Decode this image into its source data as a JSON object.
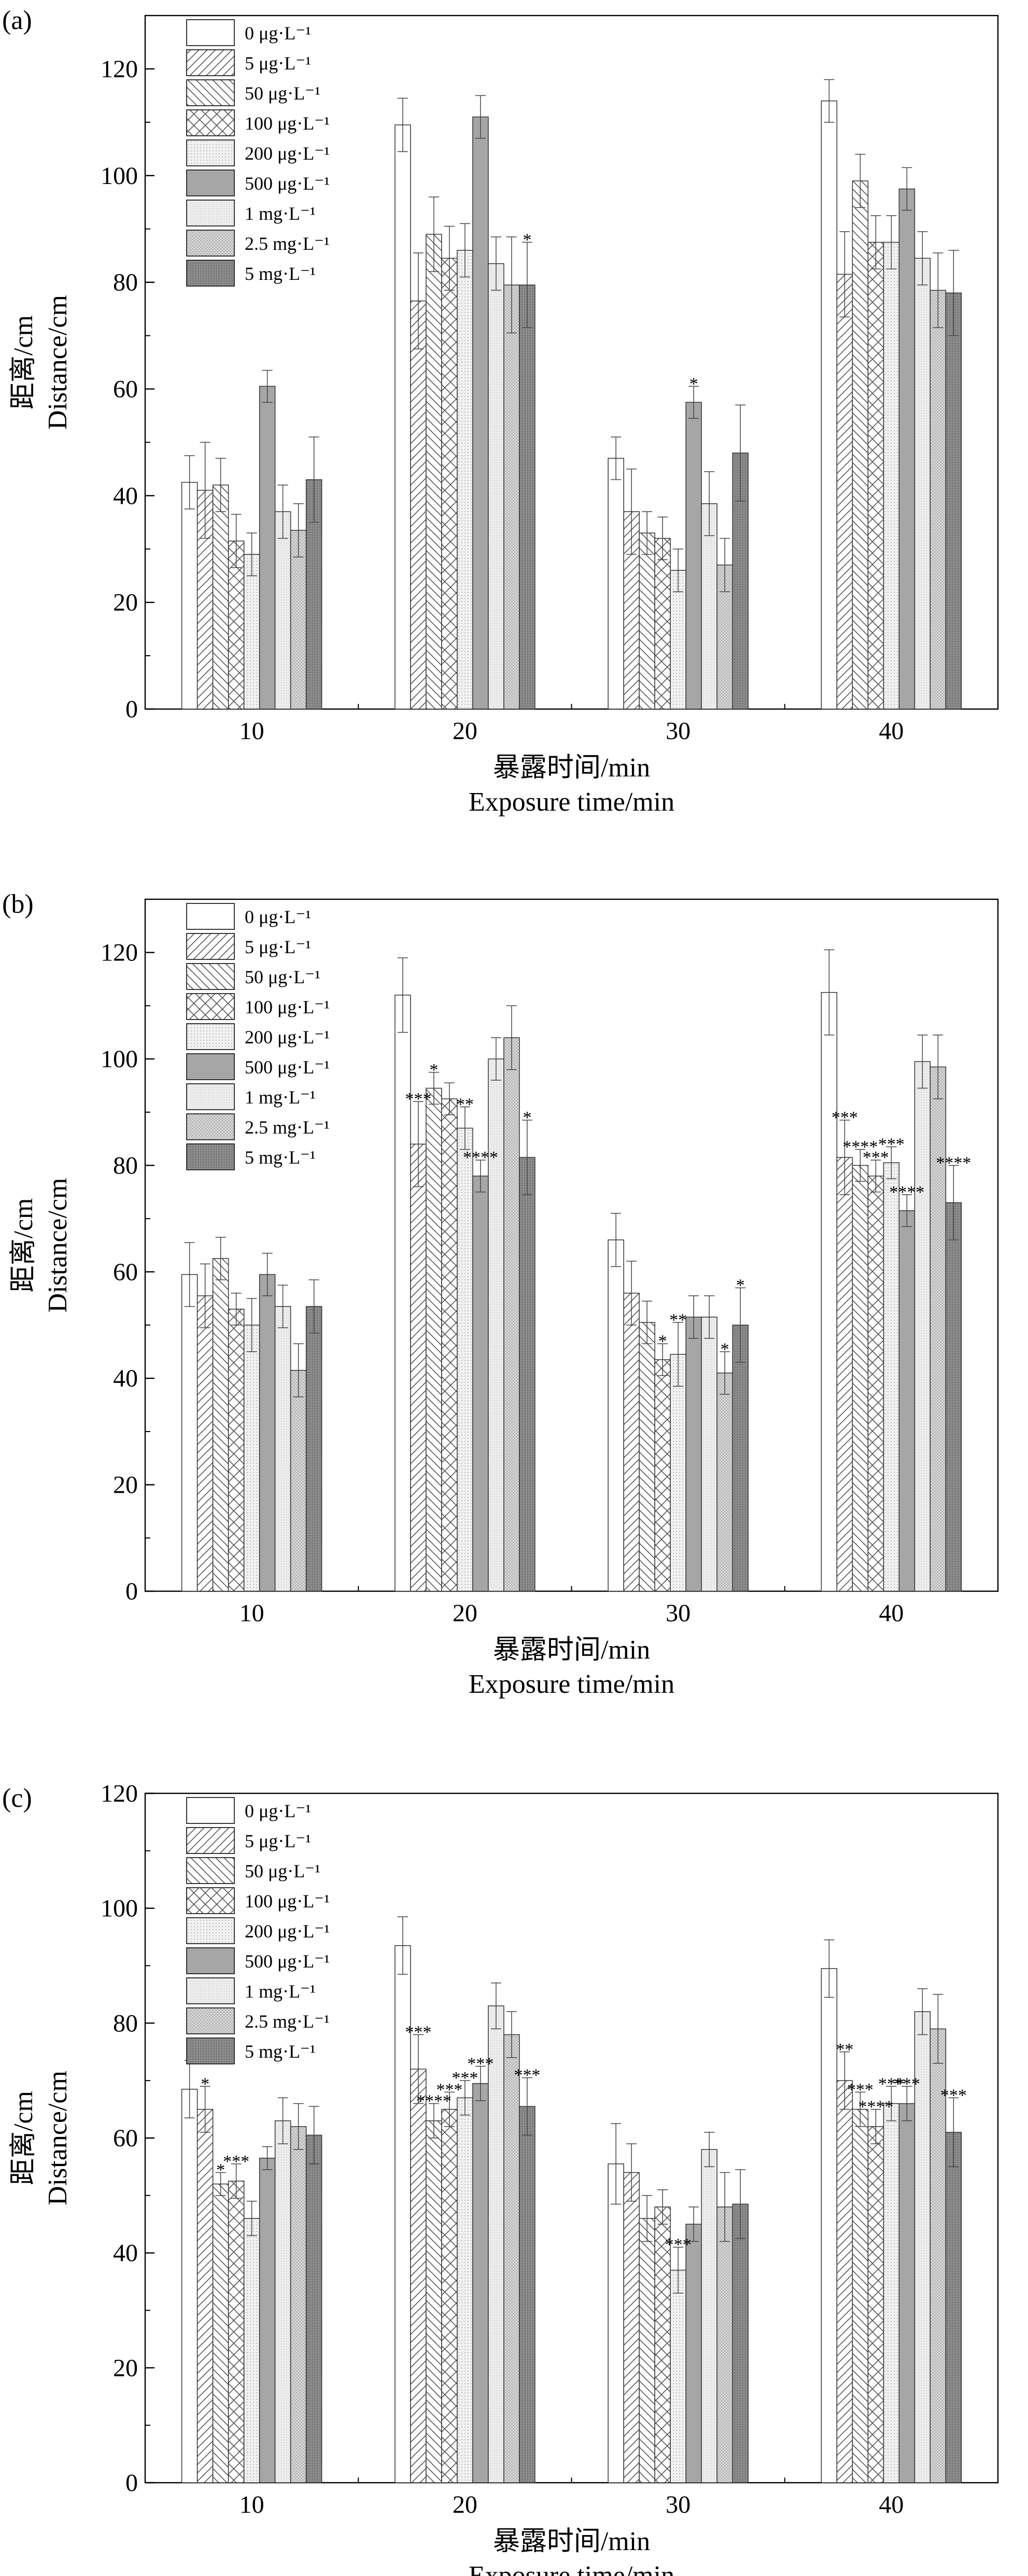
{
  "chart_data": [
    {
      "type": "bar",
      "panel_label": "(a)",
      "categories": [
        "10",
        "20",
        "30",
        "40"
      ],
      "xlabel_cn": "暴露时间/min",
      "xlabel_en": "Exposure time/min",
      "ylabel_cn": "距离/cm",
      "ylabel_en": "Distance/cm",
      "ylim": [
        0,
        130
      ],
      "yticks": [
        0,
        20,
        40,
        60,
        80,
        100,
        120
      ],
      "legend_position": "top-left",
      "series": [
        {
          "name": "0 μg·L⁻¹",
          "values": [
            42.5,
            109.5,
            47,
            114
          ],
          "errors": [
            5,
            5,
            4,
            4
          ]
        },
        {
          "name": "5 μg·L⁻¹",
          "values": [
            41,
            76.5,
            37,
            81.5
          ],
          "errors": [
            9,
            9,
            8,
            8
          ]
        },
        {
          "name": "50 μg·L⁻¹",
          "values": [
            42,
            89,
            33,
            99
          ],
          "errors": [
            5,
            7,
            4,
            5
          ]
        },
        {
          "name": "100 μg·L⁻¹",
          "values": [
            31.5,
            84.5,
            32,
            87.5
          ],
          "errors": [
            5,
            6,
            4,
            5
          ]
        },
        {
          "name": "200 μg·L⁻¹",
          "values": [
            29,
            86,
            26,
            87.5
          ],
          "errors": [
            4,
            5,
            4,
            5
          ]
        },
        {
          "name": "500 μg·L⁻¹",
          "values": [
            60.5,
            111,
            57.5,
            97.5
          ],
          "errors": [
            3,
            4,
            3,
            4
          ]
        },
        {
          "name": "1 mg·L⁻¹",
          "values": [
            37,
            83.5,
            38.5,
            84.5
          ],
          "errors": [
            5,
            5,
            6,
            5
          ]
        },
        {
          "name": "2.5 mg·L⁻¹",
          "values": [
            33.5,
            79.5,
            27,
            78.5
          ],
          "errors": [
            5,
            9,
            5,
            7
          ]
        },
        {
          "name": "5 mg·L⁻¹",
          "values": [
            43,
            79.5,
            48,
            78
          ],
          "errors": [
            8,
            8,
            9,
            8
          ]
        }
      ],
      "annotations": [
        {
          "category": "20",
          "series": 8,
          "text": "*"
        },
        {
          "category": "30",
          "series": 5,
          "text": "*"
        }
      ]
    },
    {
      "type": "bar",
      "panel_label": "(b)",
      "categories": [
        "10",
        "20",
        "30",
        "40"
      ],
      "xlabel_cn": "暴露时间/min",
      "xlabel_en": "Exposure time/min",
      "ylabel_cn": "距离/cm",
      "ylabel_en": "Distance/cm",
      "ylim": [
        0,
        130
      ],
      "yticks": [
        0,
        20,
        40,
        60,
        80,
        100,
        120
      ],
      "legend_position": "top-left",
      "series": [
        {
          "name": "0 μg·L⁻¹",
          "values": [
            59.5,
            112,
            66,
            112.5
          ],
          "errors": [
            6,
            7,
            5,
            8
          ]
        },
        {
          "name": "5 μg·L⁻¹",
          "values": [
            55.5,
            84,
            56,
            81.5
          ],
          "errors": [
            6,
            8,
            6,
            7
          ]
        },
        {
          "name": "50 μg·L⁻¹",
          "values": [
            62.5,
            94.5,
            50.5,
            80
          ],
          "errors": [
            4,
            3,
            4,
            3
          ]
        },
        {
          "name": "100 μg·L⁻¹",
          "values": [
            53,
            92.5,
            43.5,
            78
          ],
          "errors": [
            3,
            3,
            3,
            3
          ]
        },
        {
          "name": "200 μg·L⁻¹",
          "values": [
            50,
            87,
            44.5,
            80.5
          ],
          "errors": [
            5,
            4,
            6,
            3
          ]
        },
        {
          "name": "500 μg·L⁻¹",
          "values": [
            59.5,
            78,
            51.5,
            71.5
          ],
          "errors": [
            4,
            3,
            4,
            3
          ]
        },
        {
          "name": "1 mg·L⁻¹",
          "values": [
            53.5,
            100,
            51.5,
            99.5
          ],
          "errors": [
            4,
            4,
            4,
            5
          ]
        },
        {
          "name": "2.5 mg·L⁻¹",
          "values": [
            41.5,
            104,
            41,
            98.5
          ],
          "errors": [
            5,
            6,
            4,
            6
          ]
        },
        {
          "name": "5 mg·L⁻¹",
          "values": [
            53.5,
            81.5,
            50,
            73
          ],
          "errors": [
            5,
            7,
            7,
            7
          ]
        }
      ],
      "annotations": [
        {
          "category": "20",
          "series": 1,
          "text": "***"
        },
        {
          "category": "20",
          "series": 2,
          "text": "*"
        },
        {
          "category": "20",
          "series": 4,
          "text": "**"
        },
        {
          "category": "20",
          "series": 5,
          "text": "****"
        },
        {
          "category": "20",
          "series": 8,
          "text": "*"
        },
        {
          "category": "30",
          "series": 3,
          "text": "*"
        },
        {
          "category": "30",
          "series": 4,
          "text": "**"
        },
        {
          "category": "30",
          "series": 7,
          "text": "*"
        },
        {
          "category": "30",
          "series": 8,
          "text": "*"
        },
        {
          "category": "40",
          "series": 1,
          "text": "***"
        },
        {
          "category": "40",
          "series": 2,
          "text": "****"
        },
        {
          "category": "40",
          "series": 3,
          "text": "***"
        },
        {
          "category": "40",
          "series": 4,
          "text": "***"
        },
        {
          "category": "40",
          "series": 5,
          "text": "****"
        },
        {
          "category": "40",
          "series": 8,
          "text": "****"
        }
      ]
    },
    {
      "type": "bar",
      "panel_label": "(c)",
      "categories": [
        "10",
        "20",
        "30",
        "40"
      ],
      "xlabel_cn": "暴露时间/min",
      "xlabel_en": "Exposure time/min",
      "ylabel_cn": "距离/cm",
      "ylabel_en": "Distance/cm",
      "ylim": [
        0,
        120
      ],
      "yticks": [
        0,
        20,
        40,
        60,
        80,
        100,
        120
      ],
      "legend_position": "top-left",
      "series": [
        {
          "name": "0 μg·L⁻¹",
          "values": [
            68.5,
            93.5,
            55.5,
            89.5
          ],
          "errors": [
            5,
            5,
            7,
            5
          ]
        },
        {
          "name": "5 μg·L⁻¹",
          "values": [
            65,
            72,
            54,
            70
          ],
          "errors": [
            4,
            6,
            5,
            5
          ]
        },
        {
          "name": "50 μg·L⁻¹",
          "values": [
            52,
            63,
            46,
            65
          ],
          "errors": [
            2,
            3,
            4,
            3
          ]
        },
        {
          "name": "100 μg·L⁻¹",
          "values": [
            52.5,
            65,
            48,
            62
          ],
          "errors": [
            3,
            3,
            3,
            3
          ]
        },
        {
          "name": "200 μg·L⁻¹",
          "values": [
            46,
            67,
            37,
            66
          ],
          "errors": [
            3,
            3,
            4,
            3
          ]
        },
        {
          "name": "500 μg·L⁻¹",
          "values": [
            56.5,
            69.5,
            45,
            66
          ],
          "errors": [
            2,
            3,
            3,
            3
          ]
        },
        {
          "name": "1 mg·L⁻¹",
          "values": [
            63,
            83,
            58,
            82
          ],
          "errors": [
            4,
            4,
            3,
            4
          ]
        },
        {
          "name": "2.5 mg·L⁻¹",
          "values": [
            62,
            78,
            48,
            79
          ],
          "errors": [
            4,
            4,
            6,
            6
          ]
        },
        {
          "name": "5 mg·L⁻¹",
          "values": [
            60.5,
            65.5,
            48.5,
            61
          ],
          "errors": [
            5,
            5,
            6,
            6
          ]
        }
      ],
      "annotations": [
        {
          "category": "10",
          "series": 1,
          "text": "*"
        },
        {
          "category": "10",
          "series": 2,
          "text": "*"
        },
        {
          "category": "10",
          "series": 3,
          "text": "***"
        },
        {
          "category": "20",
          "series": 1,
          "text": "***"
        },
        {
          "category": "20",
          "series": 2,
          "text": "****"
        },
        {
          "category": "20",
          "series": 3,
          "text": "***"
        },
        {
          "category": "20",
          "series": 4,
          "text": "***"
        },
        {
          "category": "20",
          "series": 5,
          "text": "***"
        },
        {
          "category": "20",
          "series": 8,
          "text": "***"
        },
        {
          "category": "30",
          "series": 4,
          "text": "***"
        },
        {
          "category": "40",
          "series": 1,
          "text": "**"
        },
        {
          "category": "40",
          "series": 2,
          "text": "***"
        },
        {
          "category": "40",
          "series": 3,
          "text": "****"
        },
        {
          "category": "40",
          "series": 4,
          "text": "***"
        },
        {
          "category": "40",
          "series": 5,
          "text": "***"
        },
        {
          "category": "40",
          "series": 8,
          "text": "***"
        }
      ]
    }
  ]
}
